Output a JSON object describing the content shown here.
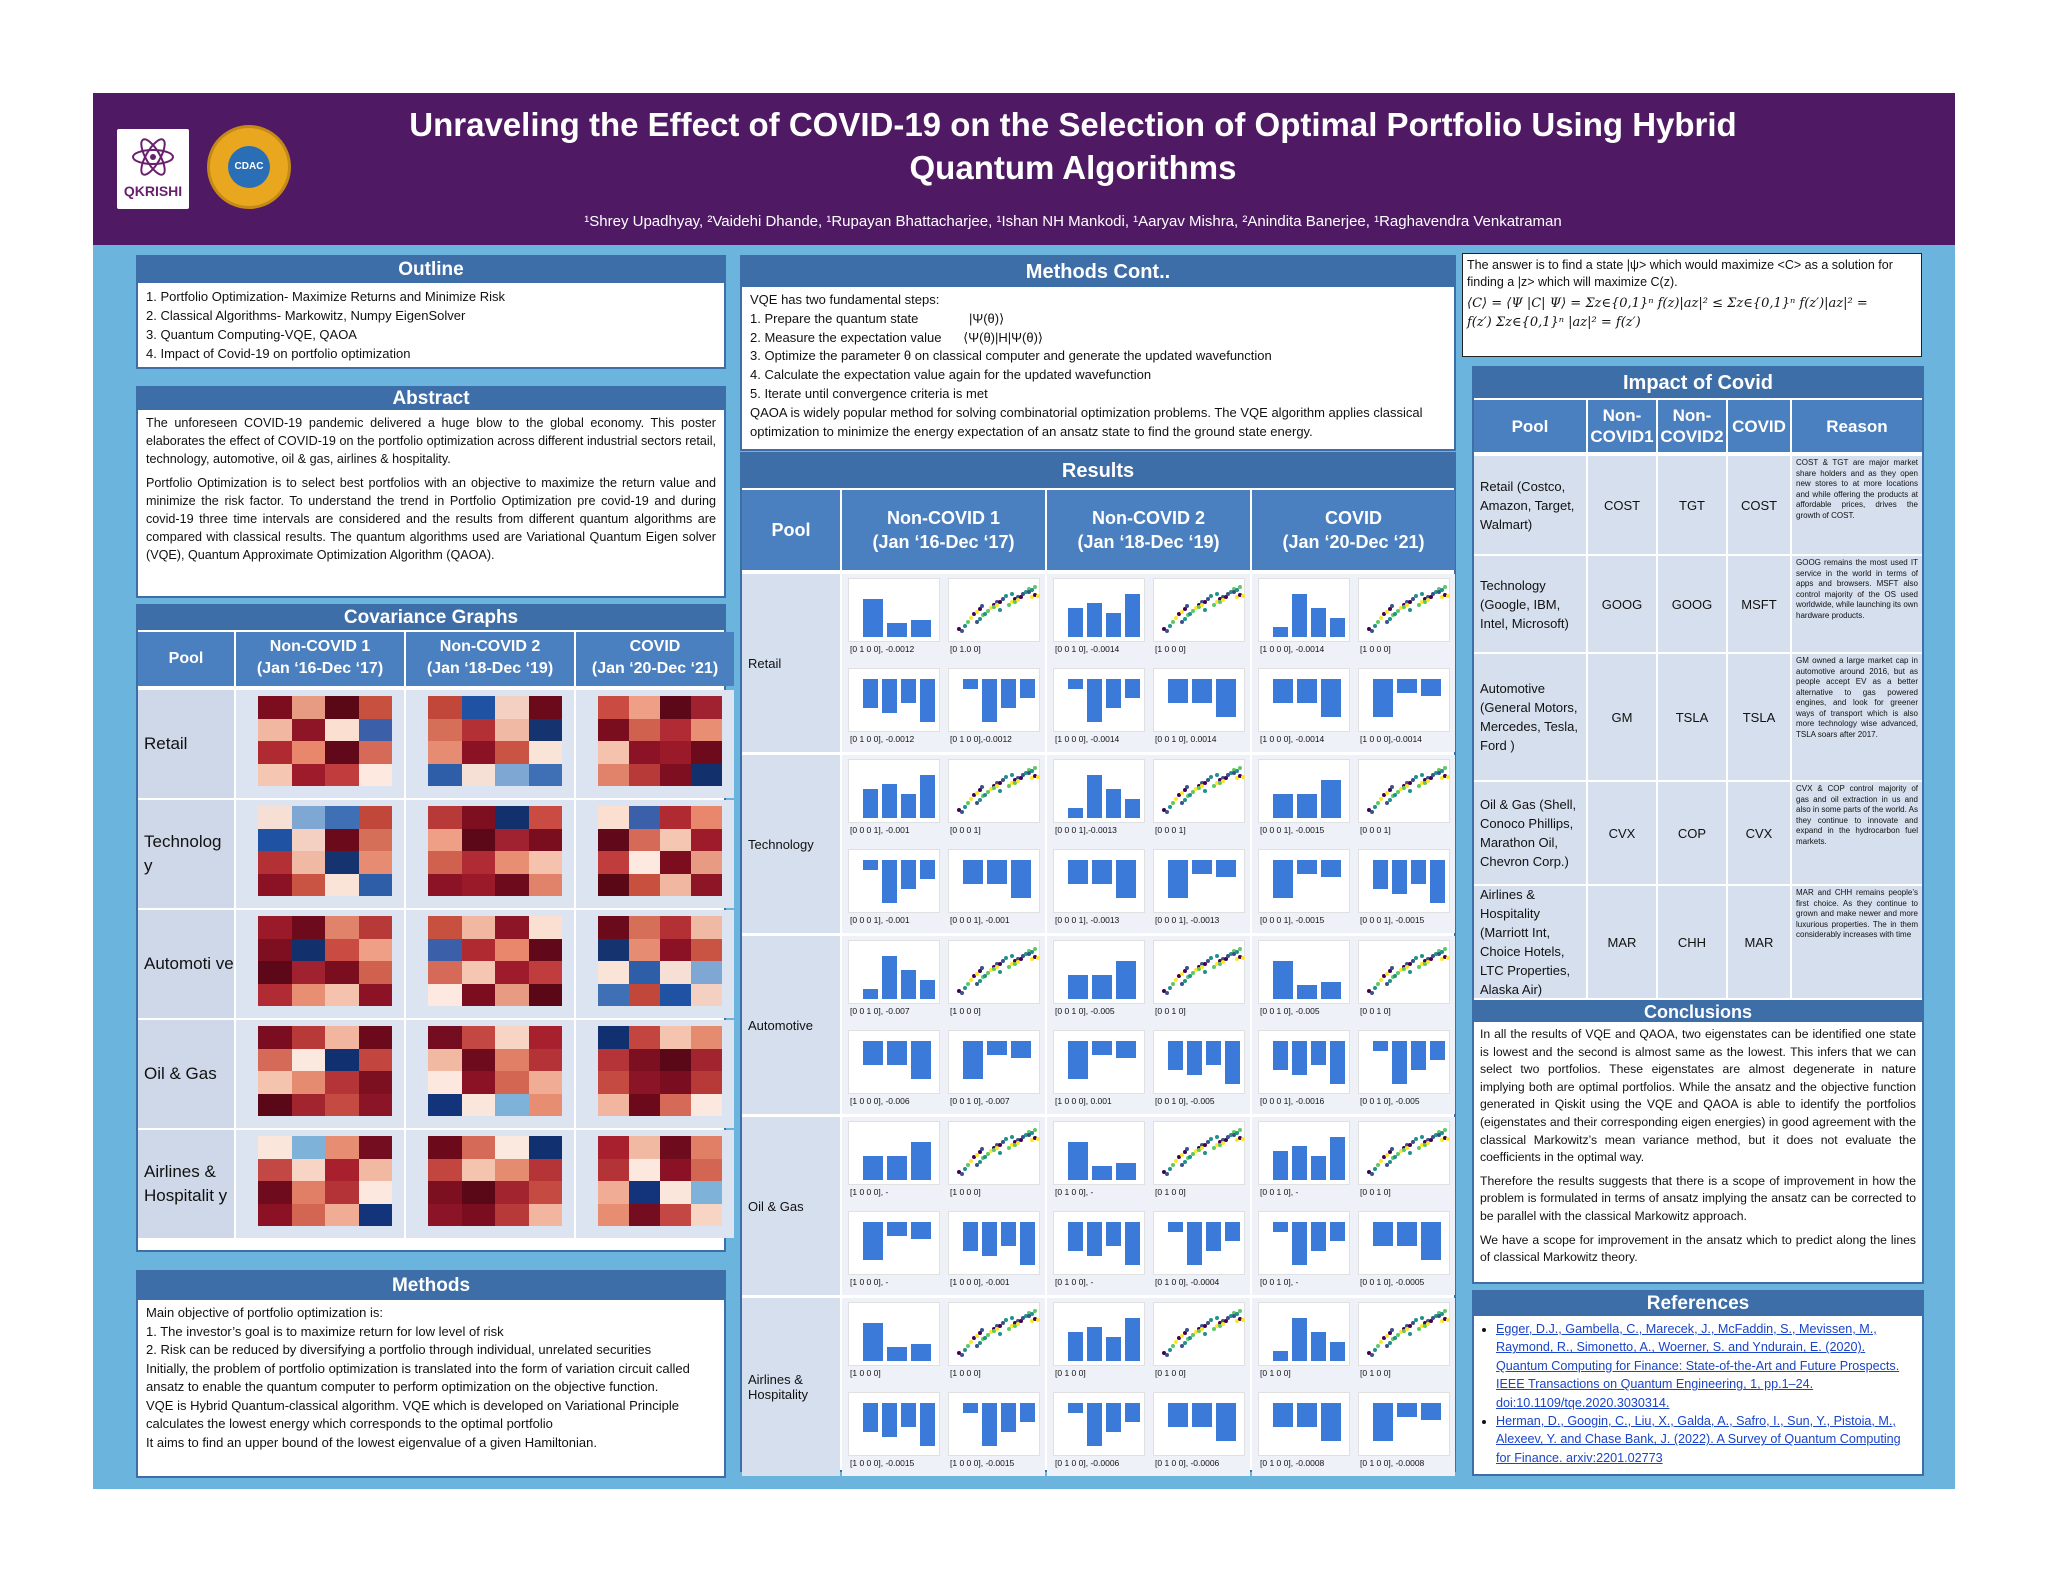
{
  "header": {
    "title_line1": "Unraveling the Effect of COVID-19 on the Selection of Optimal Portfolio Using Hybrid",
    "title_line2": "Quantum Algorithms",
    "authors": "¹Shrey   Upadhyay, ²Vaidehi Dhande, ¹Rupayan   Bhattacharjee, ¹Ishan   NH   Mankodi, ¹Aaryav   Mishra, ²Anindita Banerjee, ¹Raghavendra Venkatraman",
    "logo1_text": "QKRISHI",
    "logo2_text": "CDAC"
  },
  "outline": {
    "heading": "Outline",
    "items": [
      "1.    Portfolio Optimization- Maximize Returns and Minimize Risk",
      "2.    Classical Algorithms- Markowitz, Numpy EigenSolver",
      "3.    Quantum Computing-VQE, QAOA",
      "4.    Impact of Covid-19  on portfolio optimization"
    ]
  },
  "abstract": {
    "heading": "Abstract",
    "p1": "The unforeseen COVID-19 pandemic delivered a huge blow to the global economy. This poster elaborates the effect of COVID-19 on the portfolio optimization across different industrial sectors retail, technology, automotive, oil & gas, airlines & hospitality.",
    "p2": "Portfolio Optimization is to select best portfolios with an objective to maximize the return value and minimize the risk factor. To understand the trend in Portfolio Optimization pre covid-19 and during covid-19 three time intervals are considered and the results from different quantum algorithms are compared with classical results. The quantum algorithms used are Variational Quantum Eigen solver (VQE), Quantum Approximate Optimization Algorithm (QAOA)."
  },
  "covariance": {
    "heading": "Covariance Graphs",
    "col_pool": "Pool",
    "cols": [
      {
        "l1": "Non-COVID 1",
        "l2": "(Jan ‘16-Dec ‘17)"
      },
      {
        "l1": "Non-COVID 2",
        "l2": "(Jan ‘18-Dec ‘19)"
      },
      {
        "l1": "COVID",
        "l2": "(Jan ‘20-Dec ‘21)"
      }
    ],
    "rows": [
      "Retail",
      "Technolog y",
      "Automoti ve",
      "Oil & Gas",
      "Airlines & Hospitalit y"
    ]
  },
  "methods": {
    "heading": "Methods",
    "lines": [
      "Main objective of portfolio optimization is:",
      "1. The investor’s goal is to maximize return for low level of risk",
      "2. Risk can be reduced by diversifying a portfolio through individual, unrelated securities",
      "Initially, the problem of portfolio optimization is translated into the form of variation circuit called ansatz to enable the quantum computer to perform optimization on the objective function.",
      "VQE is Hybrid Quantum-classical algorithm. VQE which is developed on Variational Principle calculates the lowest energy which corresponds to the optimal portfolio",
      "It aims to find an upper bound of the lowest eigenvalue of a given Hamiltonian."
    ]
  },
  "methods_cont": {
    "heading": "Methods Cont..",
    "lines": [
      "VQE has two fundamental steps:",
      "1. Prepare the quantum state              |Ψ(θ)⟩",
      "2. Measure the expectation value      ⟨Ψ(θ)|H|Ψ(θ)⟩",
      "3. Optimize the parameter θ on classical computer and generate the updated wavefunction",
      "4. Calculate the expectation value again for the updated wavefunction",
      "5. Iterate until convergence criteria is met",
      "QAOA is widely popular method for solving combinatorial optimization problems. The VQE algorithm applies classical optimization to minimize the energy expectation of an ansatz state to find the ground state energy."
    ]
  },
  "qaoa_box": {
    "line1": "The answer is to find a state |ψ> which would maximize <C> as a solution for finding a |z> which will maximize C(z).",
    "eq1": "⟨C⟩ = ⟨Ψ |C| Ψ⟩ = Σz∈{0,1}ⁿ f(z)|az|² ≤ Σz∈{0,1}ⁿ f(z′)|az|² =",
    "eq2": "f(z′) Σz∈{0,1}ⁿ |az|² = f(z′)"
  },
  "results": {
    "heading": "Results",
    "col_pool": "Pool",
    "cols": [
      {
        "l1": "Non-COVID 1",
        "l2": "(Jan ‘16-Dec ‘17)"
      },
      {
        "l1": "Non-COVID 2",
        "l2": "(Jan ‘18-Dec ‘19)"
      },
      {
        "l1": "COVID",
        "l2": "(Jan ‘20-Dec ‘21)"
      }
    ],
    "rows": [
      {
        "name": "Retail",
        "caps": [
          [
            "[0 1 0 0], -0.0012",
            "[0 1.0 0]",
            "[0 0 1 0], -0.0014",
            "[1 0 0 0]",
            "[1 0 0 0], -0.0014",
            "[1 0 0 0]"
          ],
          [
            "[0 1 0 0], -0.0012",
            "[0 1 0 0],-0.0012",
            "[1 0 0 0], -0.0014",
            "[0 0 1 0], 0.0014",
            "[1 0 0 0], -0.0014",
            "[1 0 0 0],-0.0014"
          ]
        ]
      },
      {
        "name": "Technology",
        "caps": [
          [
            "[0 0 0 1], -0.001",
            "[0 0 0 1]",
            "[0 0 0 1],-0.0013",
            "[0 0 0 1]",
            "[0 0 0 1], -0.0015",
            "[0 0 0 1]"
          ],
          [
            "[0 0 0 1], -0.001",
            "[0 0 0 1], -0.001",
            "[0 0 0 1], -0.0013",
            "[0 0 0 1], -0.0013",
            "[0 0 0 1], -0.0015",
            "[0 0 0 1], -0.0015"
          ]
        ]
      },
      {
        "name": "Automotive",
        "caps": [
          [
            "[0 0 1 0], -0.007",
            "[1 0 0 0]",
            "[0 0 1 0], -0.005",
            "[0 0 1 0]",
            "[0 0 1 0], -0.005",
            "[0 0 1 0]"
          ],
          [
            "[1 0 0 0], -0.006",
            "[0 0 1 0], -0.007",
            "[1 0 0 0], 0.001",
            "[0 0 1 0], -0.005",
            "[0 0 0 1], -0.0016",
            "[0 0 1 0], -0.005"
          ]
        ]
      },
      {
        "name": "Oil & Gas",
        "caps": [
          [
            "[1 0 0 0], -",
            "[1 0 0 0]",
            "[0 1 0 0], -",
            "[0 1 0 0]",
            "[0 0 1 0], -",
            "[0 0 1 0]"
          ],
          [
            "[1 0 0 0], -",
            "[1 0 0 0], -0.001",
            "[0 1 0 0], -",
            "[0 1 0 0], -0.0004",
            "[0 0 1 0], -",
            "[0 0 1 0], -0.0005"
          ]
        ]
      },
      {
        "name": "Airlines & Hospitality",
        "caps": [
          [
            "[1 0 0 0]",
            "[1 0 0 0]",
            "[0 1 0 0]",
            "[0 1 0 0]",
            "[0 1 0 0]",
            "[0 1 0 0]"
          ],
          [
            "[1 0 0 0], -0.0015",
            "[1 0 0 0], -0.0015",
            "[0 1 0 0], -0.0006",
            "[0 1 0 0], -0.0006",
            "[0 1 0 0], -0.0008",
            "[0 1 0 0], -0.0008"
          ]
        ]
      }
    ]
  },
  "impact": {
    "heading": "Impact of Covid",
    "cols": [
      "Pool",
      "Non-COVID1",
      "Non-COVID2",
      "COVID",
      "Reason"
    ],
    "rows": [
      {
        "pool": "Retail (Costco, Amazon, Target, Walmart)",
        "nc1": "COST",
        "nc2": "TGT",
        "c": "COST",
        "reason": "COST & TGT are major market share holders and as they open new stores to at more locations and while offering the products at affordable prices, drives the growth of COST."
      },
      {
        "pool": "Technology (Google, IBM, Intel, Microsoft)",
        "nc1": "GOOG",
        "nc2": "GOOG",
        "c": "MSFT",
        "reason": "GOOG remains the most used IT service in the world in terms of apps and browsers. MSFT also control majority of the OS used worldwide, while launching its own hardware products."
      },
      {
        "pool": "Automotive (General Motors, Mercedes, Tesla, Ford )",
        "nc1": "GM",
        "nc2": "TSLA",
        "c": "TSLA",
        "reason": "GM owned a large market cap in automotive around 2016, but as people accept EV as a better alternative to gas powered engines, and look for greener ways of transport which is also more technology wise advanced, TSLA soars after 2017."
      },
      {
        "pool": "Oil & Gas (Shell, Conoco Phillips, Marathon Oil, Chevron Corp.)",
        "nc1": "CVX",
        "nc2": "COP",
        "c": "CVX",
        "reason": "CVX & COP control majority of gas and oil extraction in us and also in some parts of the world. As they continue to innovate and expand in the hydrocarbon fuel markets."
      },
      {
        "pool": "Airlines & Hospitality (Marriott Int, Choice Hotels, LTC Properties, Alaska Air)",
        "nc1": "MAR",
        "nc2": "CHH",
        "c": "MAR",
        "reason": "MAR and CHH remains people’s first choice. As they continue to grown and make newer and more luxurious properties. The in them considerably increases with time"
      }
    ]
  },
  "conclusions": {
    "heading": "Conclusions",
    "p1": "In all the results of VQE and QAOA, two eigenstates can be identified one state is lowest and the second is almost same as the lowest. This infers that we can select two portfolios. These eigenstates are almost degenerate in nature implying both are optimal portfolios. While the ansatz and the objective function generated in Qiskit using the VQE and QAOA is able to identify the portfolios (eigenstates and their corresponding eigen energies) in good agreement with the classical Markowitz’s mean variance method, but it does not evaluate the coefficients in the optimal way.",
    "p2": "Therefore the results suggests that there is a scope of improvement in how the problem is formulated in terms of ansatz implying the ansatz can be corrected to be parallel with the classical Markowitz approach.",
    "p3": "We have a scope for improvement in the ansatz which to predict along the lines of classical Markowitz theory."
  },
  "references": {
    "heading": "References",
    "items": [
      "Egger, D.J., Gambella, C., Marecek, J., McFaddin, S., Mevissen, M., Raymond, R., Simonetto, A., Woerner, S. and Yndurain, E. (2020). Quantum Computing for Finance: State-of-the-Art and Future Prospects. IEEE Transactions on Quantum Engineering, 1, pp.1–24. doi:10.1109/tqe.2020.3030314.",
      "Herman, D., Googin, C., Liu, X., Galda, A., Safro, I., Sun, Y., Pistoia, M., Alexeev, Y. and Chase Bank, J. (2022). A Survey of Quantum Computing for Finance. arxiv:2201.02773"
    ]
  },
  "colors": {
    "header_bg": "#4f1a63",
    "panel_head": "#3e6ea8",
    "poster_bg": "#6ab4de",
    "bar": "#3b7ad9"
  }
}
